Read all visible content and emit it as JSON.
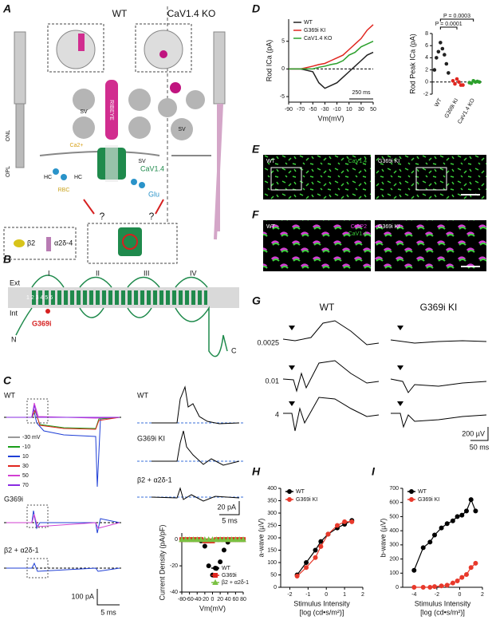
{
  "panel_labels": [
    "A",
    "B",
    "C",
    "D",
    "E",
    "F",
    "G",
    "H",
    "I"
  ],
  "panel_a": {
    "columns": [
      "WT",
      "CaV1.4 KO"
    ],
    "layers": [
      "ONL",
      "OPL"
    ],
    "sv_labels": [
      "SV",
      "SV",
      "SV"
    ],
    "ribbon": "RIBEYE",
    "calcium": "Ca2+",
    "channel": "CaV1.4",
    "transmitter": "Glu",
    "cells": [
      "HC",
      "HC",
      "RBC"
    ],
    "questions": [
      "?",
      "?"
    ],
    "subunits": [
      "β2",
      "α2δ-4"
    ]
  },
  "panel_b": {
    "domains": [
      "I",
      "II",
      "III",
      "IV"
    ],
    "sides": [
      "Ext",
      "Int"
    ],
    "termini": [
      "N",
      "C"
    ],
    "segments": "1 2 3 4 5 6",
    "mutation": "G369i"
  },
  "panel_c": {
    "traces": [
      "WT",
      "G369i",
      "β2 + α2δ-1"
    ],
    "voltages": [
      "-30 mV",
      "-10",
      "10",
      "30",
      "50",
      "70"
    ],
    "voltage_colors": [
      "#999999",
      "#1a9e1a",
      "#1f3fd6",
      "#e0261f",
      "#d23fd2",
      "#8a2be2"
    ],
    "scale": [
      "100 pA",
      "5 ms"
    ],
    "tail_traces": [
      "WT",
      "G369i KI",
      "β2 + α2δ-1"
    ],
    "tail_scale": [
      "20 pA",
      "5 ms"
    ]
  },
  "panel_e": {
    "labels": [
      "WT",
      "G369i KI"
    ],
    "stain": "CaV1.4"
  },
  "panel_f": {
    "labels": [
      "WT",
      "G369i KI"
    ],
    "stains": [
      "CtBP2",
      "CaV1.4"
    ]
  },
  "panel_g": {
    "columns": [
      "WT",
      "G369i KI"
    ],
    "intensities": [
      "0.0025",
      "0.01",
      "4"
    ],
    "scale": [
      "200 µV",
      "50 ms"
    ]
  },
  "chart_data": [
    {
      "type": "line",
      "ylabel": "Rod ICa (pA)",
      "xlabel": "Vm(mV)",
      "annotation": "250 ms",
      "x": [
        -90,
        -70,
        -50,
        -40,
        -30,
        -20,
        -10,
        0,
        10,
        20,
        30,
        40,
        50
      ],
      "series": [
        {
          "name": "WT",
          "color": "#222222",
          "values": [
            0,
            0,
            -0.5,
            -2.5,
            -3.5,
            -3,
            -2.5,
            -1.5,
            -0.5,
            0.5,
            1.5,
            2.5,
            3
          ]
        },
        {
          "name": "G369i KI",
          "color": "#e0261f",
          "values": [
            0,
            0,
            0.5,
            0.8,
            1,
            1.5,
            2,
            2.5,
            3.5,
            4.5,
            5.5,
            7,
            8
          ]
        },
        {
          "name": "CaV1.4 KO",
          "color": "#2ca02c",
          "values": [
            0,
            0,
            0,
            0.3,
            0.5,
            0.8,
            1,
            1.5,
            2.5,
            3,
            4,
            4.5,
            5
          ]
        }
      ],
      "xlim": [
        -90,
        50
      ],
      "ylim": [
        -6,
        9
      ],
      "xticks": [
        -90,
        -70,
        -50,
        -30,
        -10,
        10,
        30,
        50
      ],
      "yticks": [
        -5,
        0,
        5
      ],
      "zero_line": true,
      "markers": false,
      "legend": "upper-left"
    },
    {
      "type": "dot",
      "ylabel": "Rod Peak ICa (pA)",
      "categories": [
        "WT",
        "G369i KI",
        "CaV1.4 KO"
      ],
      "colors": [
        "#222222",
        "#e0261f",
        "#2ca02c"
      ],
      "points": [
        [
          6.5,
          5.5,
          5,
          4.5,
          4,
          3,
          2,
          1.5
        ],
        [
          0.5,
          0,
          -0.3,
          -0.5,
          0.2,
          -0.5
        ],
        [
          0.2,
          0,
          -0.2,
          0.1,
          -0.1,
          0
        ]
      ],
      "annotations": [
        "P = 0.0003",
        "P = 0.0001"
      ],
      "ylim": [
        -2,
        8
      ],
      "yticks": [
        -2,
        0,
        2,
        4,
        6,
        8
      ],
      "zero_line": true
    },
    {
      "type": "scatter",
      "ylabel": "Current Density (pA/pF)",
      "xlabel": "Vm(mV)",
      "x": [
        -80,
        -70,
        -60,
        -50,
        -40,
        -30,
        -20,
        -10,
        0,
        10,
        20,
        30,
        40,
        50,
        60,
        70,
        80
      ],
      "series": [
        {
          "name": "WT",
          "color": "#000000",
          "marker": "circle",
          "values": [
            0,
            0,
            0,
            0,
            0,
            -1,
            -5,
            -20,
            -27,
            -22,
            -17,
            -8,
            -2,
            0,
            0,
            0,
            0
          ]
        },
        {
          "name": "G369i",
          "color": "#e0261f",
          "marker": "square",
          "values": [
            0,
            0,
            0,
            0,
            0,
            0,
            -1,
            -1,
            -1,
            0,
            0,
            0,
            0,
            0,
            0,
            0,
            0
          ]
        },
        {
          "name": "β2 + α2δ-1",
          "color": "#7ac143",
          "marker": "triangle",
          "values": [
            0,
            0,
            0,
            0,
            0,
            0,
            0,
            0,
            0,
            0,
            0,
            0,
            0,
            0,
            0,
            0,
            0
          ]
        }
      ],
      "xlim": [
        -80,
        80
      ],
      "ylim": [
        -40,
        5
      ],
      "xticks": [
        -80,
        -60,
        -40,
        -20,
        0,
        20,
        40,
        60,
        80
      ],
      "yticks": [
        -40,
        -20,
        0
      ],
      "legend": "lower-right"
    },
    {
      "type": "line",
      "ylabel": "a-wave (µV)",
      "xlabel": "Stimulus Intensity",
      "xlabel2": "[log (cd•s/m²)]",
      "x": [
        -1.6,
        -1.1,
        -0.6,
        -0.3,
        0.1,
        0.6,
        1.0,
        1.4
      ],
      "series": [
        {
          "name": "WT",
          "color": "#000000",
          "values": [
            50,
            100,
            150,
            185,
            215,
            240,
            255,
            270
          ]
        },
        {
          "name": "G369i KI",
          "color": "#e8392b",
          "values": [
            45,
            80,
            120,
            165,
            215,
            250,
            265,
            265
          ]
        }
      ],
      "xlim": [
        -2.5,
        2
      ],
      "ylim": [
        0,
        400
      ],
      "xticks": [
        -2,
        -1,
        0,
        1,
        2
      ],
      "yticks": [
        0,
        50,
        100,
        150,
        200,
        250,
        300,
        350,
        400
      ],
      "markers": true,
      "legend": "upper-left"
    },
    {
      "type": "line",
      "ylabel": "b-wave (µV)",
      "xlabel": "Stimulus Intensity",
      "xlabel2": "[log (cd•s/m²)]",
      "x": [
        -4,
        -3.2,
        -2.6,
        -2.2,
        -1.6,
        -1.1,
        -0.6,
        -0.2,
        0.2,
        0.6,
        1.0,
        1.4
      ],
      "series": [
        {
          "name": "WT",
          "color": "#000000",
          "values": [
            120,
            280,
            320,
            370,
            420,
            450,
            470,
            500,
            510,
            540,
            620,
            540
          ]
        },
        {
          "name": "G369i KI",
          "color": "#e8392b",
          "values": [
            0,
            0,
            0,
            5,
            10,
            15,
            30,
            45,
            70,
            90,
            140,
            170
          ]
        }
      ],
      "xlim": [
        -5,
        2
      ],
      "ylim": [
        0,
        700
      ],
      "xticks": [
        -4,
        -2,
        0,
        2
      ],
      "yticks": [
        0,
        100,
        200,
        300,
        400,
        500,
        600,
        700
      ],
      "markers": true,
      "legend": "upper-left"
    }
  ]
}
